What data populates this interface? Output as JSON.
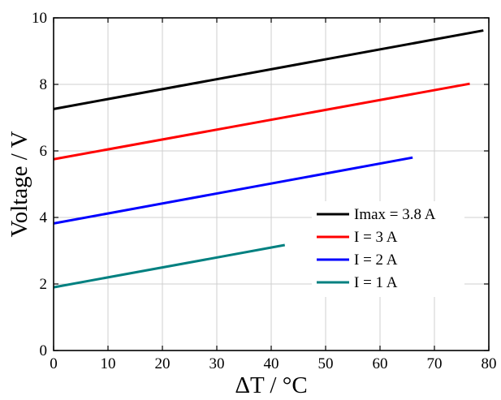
{
  "chart_data": {
    "type": "line",
    "title": "",
    "xlabel": "ΔT / °C",
    "ylabel": "Voltage / V",
    "xlim": [
      0,
      80
    ],
    "ylim": [
      0,
      10
    ],
    "xticks": [
      0,
      10,
      20,
      30,
      40,
      50,
      60,
      70,
      80
    ],
    "yticks": [
      0,
      2,
      4,
      6,
      8,
      10
    ],
    "xtick_labels": [
      "0",
      "10",
      "20",
      "30",
      "40",
      "50",
      "60",
      "70",
      "80"
    ],
    "ytick_labels": [
      "0",
      "2",
      "4",
      "6",
      "8",
      "10"
    ],
    "grid": true,
    "legend_position": "middle-right",
    "series": [
      {
        "name": "Imax = 3.8 A",
        "color": "#000000",
        "x": [
          0,
          79
        ],
        "y": [
          7.26,
          9.62
        ]
      },
      {
        "name": "I = 3 A",
        "color": "#ff0000",
        "x": [
          0,
          76.5
        ],
        "y": [
          5.75,
          8.02
        ]
      },
      {
        "name": "I = 2 A",
        "color": "#0000ff",
        "x": [
          0,
          66
        ],
        "y": [
          3.82,
          5.8
        ]
      },
      {
        "name": "I = 1 A",
        "color": "#008080",
        "x": [
          0,
          42.5
        ],
        "y": [
          1.9,
          3.17
        ]
      }
    ]
  }
}
